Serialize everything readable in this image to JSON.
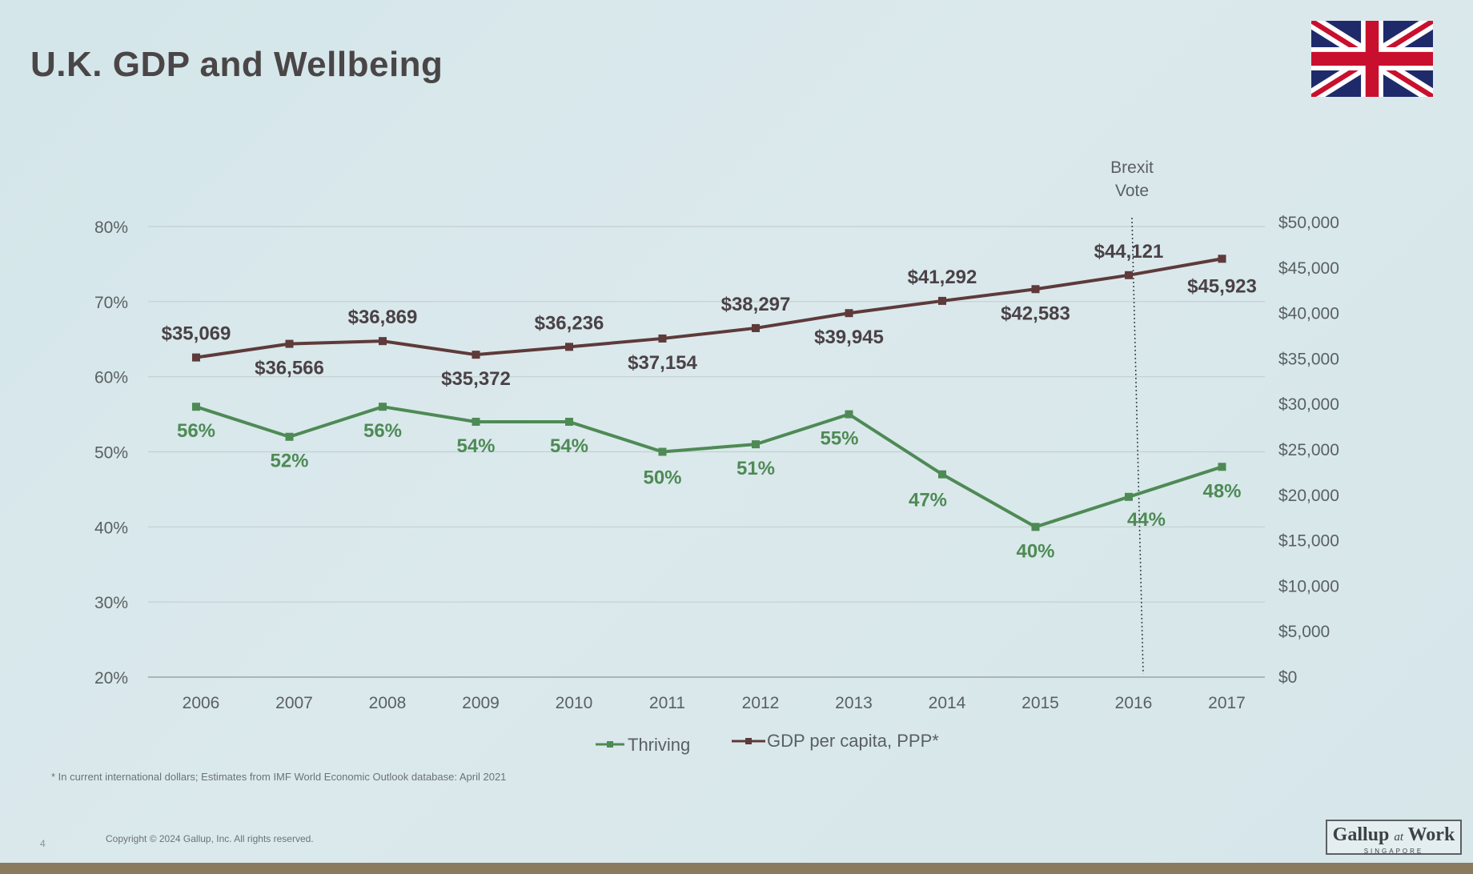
{
  "slide": {
    "title": "U.K. GDP and Wellbeing",
    "footnote": "* In current international dollars; Estimates from IMF World Economic Outlook database: April 2021",
    "page_number": "4",
    "copyright": "Copyright © 2024 Gallup, Inc. All rights reserved.",
    "logo": {
      "main": "Gallup",
      "connector": "at",
      "work": "Work",
      "sub": "SINGAPORE"
    },
    "flag_icon": "uk-flag-icon"
  },
  "chart_data": {
    "type": "line",
    "title": "",
    "categories": [
      "2006",
      "2007",
      "2008",
      "2009",
      "2010",
      "2011",
      "2012",
      "2013",
      "2014",
      "2015",
      "2016",
      "2017"
    ],
    "left_axis": {
      "ticks": [
        20,
        30,
        40,
        50,
        60,
        70,
        80
      ],
      "tick_labels": [
        "20%",
        "30%",
        "40%",
        "50%",
        "60%",
        "70%",
        "80%"
      ],
      "range": [
        20,
        80
      ]
    },
    "right_axis": {
      "ticks": [
        0,
        5000,
        10000,
        15000,
        20000,
        25000,
        30000,
        35000,
        40000,
        45000,
        50000
      ],
      "tick_labels": [
        "$0",
        "$5,000",
        "$10,000",
        "$15,000",
        "$20,000",
        "$25,000",
        "$30,000",
        "$35,000",
        "$40,000",
        "$45,000",
        "$50,000"
      ],
      "range": [
        0,
        50000
      ]
    },
    "series": [
      {
        "name": "Thriving",
        "axis": "left",
        "color": "#4e8a55",
        "values": [
          56,
          52,
          56,
          54,
          54,
          50,
          51,
          55,
          47,
          40,
          44,
          48
        ],
        "labels": [
          "56%",
          "52%",
          "56%",
          "54%",
          "54%",
          "50%",
          "51%",
          "55%",
          "47%",
          "40%",
          "44%",
          "48%"
        ]
      },
      {
        "name": "GDP per capita, PPP*",
        "axis": "right",
        "color": "#5e3a3a",
        "values": [
          35069,
          36566,
          36869,
          35372,
          36236,
          37154,
          38297,
          39945,
          41292,
          42583,
          44121,
          45923
        ],
        "labels": [
          "$35,069",
          "$36,566",
          "$36,869",
          "$35,372",
          "$36,236",
          "$37,154",
          "$38,297",
          "$39,945",
          "$41,292",
          "$42,583",
          "$44,121",
          "$45,923"
        ]
      }
    ],
    "annotation": {
      "text_line1": "Brexit",
      "text_line2": "Vote",
      "x": "2016",
      "style": "dotted vertical line"
    },
    "grid": true,
    "legend_position": "bottom-center"
  }
}
